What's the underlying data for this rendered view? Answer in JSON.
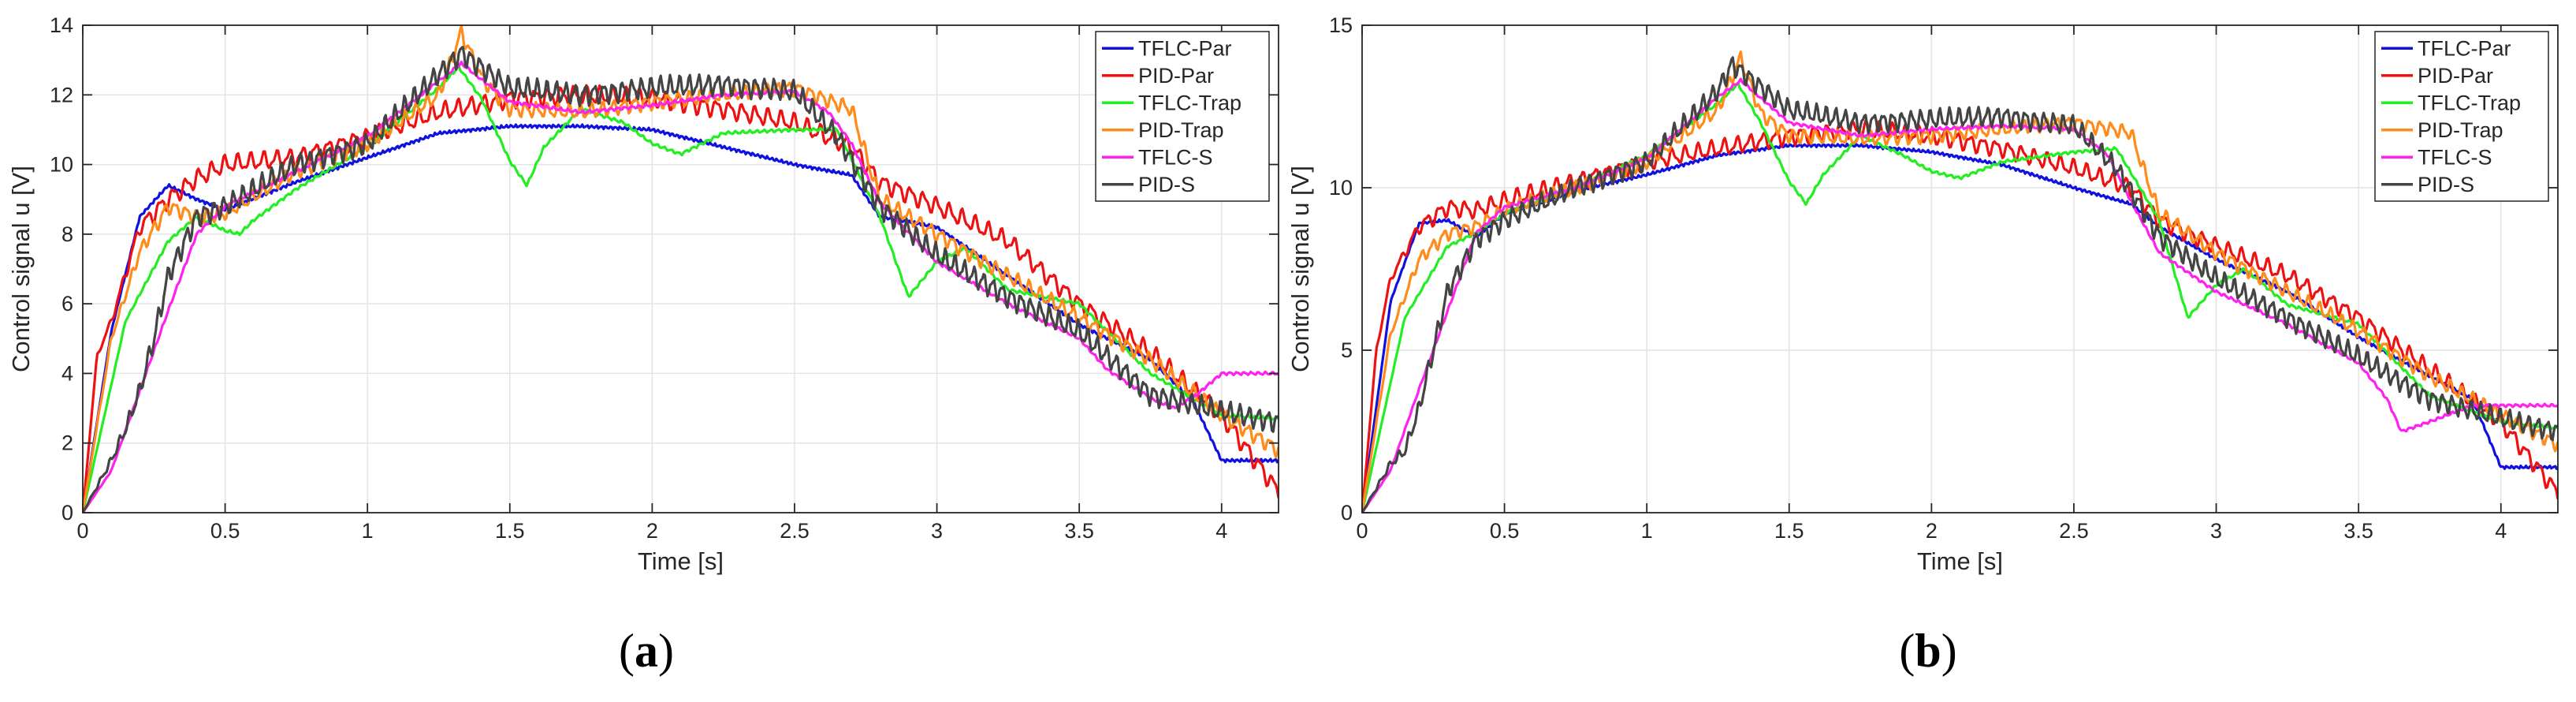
{
  "chart_data": [
    {
      "type": "line",
      "panel": "(a)",
      "panel_letter": "a",
      "xlabel": "Time [s]",
      "ylabel": "Control signal u [V]",
      "xlim": [
        0,
        4.2
      ],
      "ylim": [
        0,
        14
      ],
      "xticks": [
        0,
        0.5,
        1,
        1.5,
        2,
        2.5,
        3,
        3.5,
        4
      ],
      "xtick_labels": [
        "0",
        "0.5",
        "1",
        "1.5",
        "2",
        "2.5",
        "3",
        "3.5",
        "4"
      ],
      "yticks": [
        0,
        2,
        4,
        6,
        8,
        10,
        12,
        14
      ],
      "ytick_labels": [
        "0",
        "2",
        "4",
        "6",
        "8",
        "10",
        "12",
        "14"
      ],
      "grid": true,
      "legend_position": "top-right",
      "series": [
        {
          "name": "TFLC-Par",
          "color": "#1010e0",
          "noise": 0.05,
          "freq": 60,
          "x": [
            0,
            0.1,
            0.2,
            0.3,
            0.4,
            0.5,
            0.75,
            1.0,
            1.25,
            1.5,
            1.75,
            2.0,
            2.25,
            2.5,
            2.7,
            2.8,
            3.0,
            3.25,
            3.5,
            3.75,
            3.9,
            4.0,
            4.2
          ],
          "y": [
            0,
            5.2,
            8.5,
            9.4,
            9.0,
            8.7,
            9.5,
            10.2,
            10.9,
            11.1,
            11.1,
            11.0,
            10.5,
            10.0,
            9.7,
            8.5,
            8.2,
            6.8,
            5.4,
            4.4,
            3.2,
            1.5,
            1.5
          ]
        },
        {
          "name": "PID-Par",
          "color": "#ee1111",
          "noise": 0.3,
          "freq": 22,
          "x": [
            0,
            0.05,
            0.1,
            0.2,
            0.3,
            0.4,
            0.5,
            0.75,
            1.0,
            1.25,
            1.5,
            1.75,
            2.0,
            2.25,
            2.5,
            2.7,
            2.8,
            3.0,
            3.25,
            3.5,
            3.75,
            4.0,
            4.2
          ],
          "y": [
            0,
            4.5,
            5.5,
            8.2,
            9.0,
            9.6,
            10.0,
            10.2,
            10.8,
            11.5,
            11.9,
            12.0,
            11.9,
            11.6,
            11.2,
            10.5,
            9.5,
            8.8,
            7.8,
            6.0,
            4.6,
            2.8,
            0.6
          ]
        },
        {
          "name": "TFLC-Trap",
          "color": "#22ee22",
          "noise": 0.05,
          "freq": 40,
          "x": [
            0,
            0.15,
            0.3,
            0.4,
            0.5,
            0.55,
            0.6,
            0.75,
            1.0,
            1.25,
            1.32,
            1.4,
            1.5,
            1.56,
            1.62,
            1.75,
            1.9,
            2.0,
            2.1,
            2.25,
            2.5,
            2.65,
            2.8,
            2.9,
            3.0,
            3.1,
            3.25,
            3.5,
            3.75,
            4.0,
            4.2
          ],
          "y": [
            0,
            5.5,
            7.8,
            8.5,
            8.1,
            8.0,
            8.4,
            9.3,
            10.5,
            12.2,
            12.8,
            11.9,
            10.1,
            9.4,
            10.5,
            11.6,
            11.2,
            10.6,
            10.3,
            10.9,
            11.0,
            11.0,
            8.5,
            6.2,
            7.2,
            7.6,
            6.4,
            6.0,
            4.0,
            2.8,
            2.7
          ]
        },
        {
          "name": "PID-Trap",
          "color": "#ff8c1a",
          "noise": 0.25,
          "freq": 26,
          "x": [
            0,
            0.1,
            0.2,
            0.3,
            0.4,
            0.5,
            0.75,
            1.0,
            1.25,
            1.33,
            1.4,
            1.5,
            1.75,
            2.0,
            2.25,
            2.5,
            2.7,
            2.8,
            3.0,
            3.25,
            3.5,
            3.75,
            4.0,
            4.2
          ],
          "y": [
            0,
            5.0,
            7.5,
            8.8,
            8.5,
            8.6,
            9.8,
            10.6,
            12.0,
            13.8,
            12.5,
            11.6,
            11.5,
            11.8,
            12.0,
            12.2,
            11.6,
            9.0,
            8.0,
            6.8,
            5.6,
            4.4,
            2.8,
            1.8
          ]
        },
        {
          "name": "TFLC-S",
          "color": "#ff22ee",
          "noise": 0.05,
          "freq": 40,
          "x": [
            0,
            0.1,
            0.2,
            0.3,
            0.4,
            0.5,
            0.75,
            1.0,
            1.25,
            1.33,
            1.5,
            1.75,
            2.0,
            2.25,
            2.5,
            2.62,
            2.7,
            2.8,
            3.0,
            3.25,
            3.5,
            3.6,
            3.75,
            3.83,
            3.9,
            4.0,
            4.2
          ],
          "y": [
            0,
            1.2,
            3.5,
            5.8,
            8.0,
            8.8,
            9.8,
            10.8,
            12.4,
            12.9,
            11.8,
            11.5,
            11.7,
            12.0,
            12.1,
            11.5,
            10.6,
            8.9,
            7.2,
            6.0,
            5.0,
            4.1,
            3.3,
            3.0,
            3.3,
            4.0,
            4.0
          ]
        },
        {
          "name": "PID-S",
          "color": "#444444",
          "noise": 0.35,
          "freq": 30,
          "x": [
            0,
            0.1,
            0.15,
            0.2,
            0.25,
            0.3,
            0.4,
            0.5,
            0.75,
            1.0,
            1.25,
            1.33,
            1.5,
            1.75,
            2.0,
            2.25,
            2.5,
            2.65,
            2.8,
            3.0,
            3.25,
            3.5,
            3.75,
            4.0,
            4.2
          ],
          "y": [
            0,
            1.5,
            2.4,
            3.5,
            5.0,
            6.8,
            8.5,
            8.8,
            10.0,
            10.6,
            12.6,
            13.2,
            12.2,
            12.0,
            12.2,
            12.3,
            12.1,
            10.8,
            8.8,
            7.4,
            6.2,
            5.2,
            3.4,
            2.9,
            2.6
          ]
        }
      ]
    },
    {
      "type": "line",
      "panel": "(b)",
      "panel_letter": "b",
      "xlabel": "Time [s]",
      "ylabel": "Control signal u [V]",
      "xlim": [
        0,
        4.2
      ],
      "ylim": [
        0,
        15
      ],
      "xticks": [
        0,
        0.5,
        1,
        1.5,
        2,
        2.5,
        3,
        3.5,
        4
      ],
      "xtick_labels": [
        "0",
        "0.5",
        "1",
        "1.5",
        "2",
        "2.5",
        "3",
        "3.5",
        "4"
      ],
      "yticks": [
        0,
        5,
        10,
        15
      ],
      "ytick_labels": [
        "0",
        "5",
        "10",
        "15"
      ],
      "grid": true,
      "legend_position": "top-right",
      "series": [
        {
          "name": "TFLC-Par",
          "color": "#1010e0",
          "noise": 0.05,
          "freq": 60,
          "x": [
            0,
            0.1,
            0.2,
            0.3,
            0.4,
            0.5,
            0.75,
            1.0,
            1.25,
            1.5,
            1.75,
            2.0,
            2.25,
            2.5,
            2.7,
            2.8,
            3.0,
            3.25,
            3.5,
            3.75,
            3.9,
            4.0,
            4.2
          ],
          "y": [
            0,
            6.5,
            8.9,
            9.0,
            8.5,
            9.2,
            9.9,
            10.4,
            11.0,
            11.3,
            11.3,
            11.1,
            10.7,
            10.0,
            9.5,
            8.8,
            7.8,
            6.8,
            5.4,
            4.2,
            3.5,
            1.4,
            1.4
          ]
        },
        {
          "name": "PID-Par",
          "color": "#ee1111",
          "noise": 0.3,
          "freq": 22,
          "x": [
            0,
            0.05,
            0.1,
            0.2,
            0.3,
            0.4,
            0.5,
            0.75,
            1.0,
            1.25,
            1.5,
            1.75,
            2.0,
            2.25,
            2.5,
            2.7,
            2.8,
            3.0,
            3.25,
            3.5,
            3.75,
            4.0,
            4.2
          ],
          "y": [
            0,
            5.0,
            7.2,
            8.8,
            9.4,
            9.3,
            9.6,
            10.2,
            10.8,
            11.2,
            11.6,
            11.8,
            11.6,
            11.2,
            10.6,
            10.0,
            9.0,
            8.2,
            7.3,
            6.0,
            4.4,
            2.8,
            0.6
          ]
        },
        {
          "name": "TFLC-Trap",
          "color": "#22ee22",
          "noise": 0.05,
          "freq": 40,
          "x": [
            0,
            0.15,
            0.3,
            0.4,
            0.5,
            0.75,
            1.0,
            1.25,
            1.32,
            1.4,
            1.5,
            1.56,
            1.62,
            1.75,
            1.9,
            2.0,
            2.1,
            2.25,
            2.5,
            2.65,
            2.8,
            2.9,
            3.0,
            3.1,
            3.25,
            3.5,
            3.75,
            4.0,
            4.2
          ],
          "y": [
            0,
            6.0,
            8.2,
            8.6,
            9.2,
            10.0,
            11.0,
            12.6,
            13.2,
            12.0,
            10.2,
            9.5,
            10.4,
            11.6,
            11.0,
            10.5,
            10.3,
            10.8,
            11.1,
            11.2,
            9.0,
            6.0,
            7.0,
            7.5,
            6.4,
            5.8,
            3.6,
            2.8,
            2.6
          ]
        },
        {
          "name": "PID-Trap",
          "color": "#ff8c1a",
          "noise": 0.25,
          "freq": 26,
          "x": [
            0,
            0.1,
            0.2,
            0.3,
            0.4,
            0.5,
            0.75,
            1.0,
            1.25,
            1.33,
            1.4,
            1.5,
            1.75,
            2.0,
            2.25,
            2.5,
            2.7,
            2.8,
            3.0,
            3.25,
            3.5,
            3.75,
            4.0,
            4.2
          ],
          "y": [
            0,
            5.5,
            7.8,
            8.6,
            8.8,
            9.3,
            10.0,
            10.8,
            12.4,
            14.0,
            12.3,
            11.6,
            11.5,
            11.6,
            11.8,
            12.0,
            11.7,
            9.2,
            8.0,
            6.8,
            5.6,
            4.2,
            3.0,
            2.1
          ]
        },
        {
          "name": "TFLC-S",
          "color": "#ff22ee",
          "noise": 0.05,
          "freq": 40,
          "x": [
            0,
            0.1,
            0.2,
            0.3,
            0.4,
            0.5,
            0.75,
            1.0,
            1.25,
            1.33,
            1.5,
            1.75,
            2.0,
            2.25,
            2.5,
            2.62,
            2.7,
            2.8,
            3.0,
            3.25,
            3.5,
            3.6,
            3.65,
            3.75,
            3.9,
            4.0,
            4.2
          ],
          "y": [
            0,
            1.3,
            3.8,
            6.2,
            8.6,
            9.4,
            10.0,
            10.9,
            12.8,
            13.3,
            12.0,
            11.6,
            11.8,
            11.9,
            11.8,
            11.0,
            9.6,
            8.0,
            6.8,
            5.8,
            4.6,
            3.5,
            2.5,
            2.8,
            3.3,
            3.3,
            3.3
          ]
        },
        {
          "name": "PID-S",
          "color": "#444444",
          "noise": 0.35,
          "freq": 30,
          "x": [
            0,
            0.1,
            0.15,
            0.2,
            0.25,
            0.3,
            0.4,
            0.5,
            0.75,
            1.0,
            1.25,
            1.3,
            1.5,
            1.75,
            2.0,
            2.25,
            2.5,
            2.65,
            2.8,
            3.0,
            3.25,
            3.5,
            3.75,
            4.0,
            4.2
          ],
          "y": [
            0,
            1.5,
            1.9,
            3.2,
            5.0,
            6.8,
            8.4,
            9.0,
            10.0,
            10.8,
            13.0,
            13.8,
            12.4,
            12.0,
            12.1,
            12.2,
            11.9,
            10.6,
            8.5,
            7.2,
            6.0,
            4.8,
            3.5,
            2.9,
            2.5
          ]
        }
      ]
    }
  ]
}
